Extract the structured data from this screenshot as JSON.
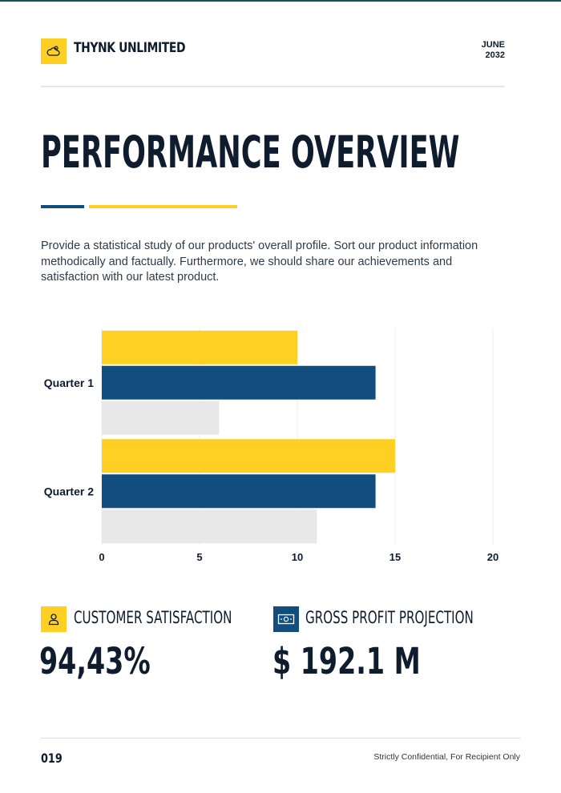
{
  "header": {
    "company": "THYNK UNLIMITED",
    "date_month": "JUNE",
    "date_year": "2032",
    "logo_icon": "cloud-sun-icon"
  },
  "page": {
    "title": "PERFORMANCE OVERVIEW",
    "intro": "Provide a statistical study of our products' overall profile. Sort our product information methodically and factually. Furthermore, we should share our achievements and satisfaction with our latest product."
  },
  "colors": {
    "yellow": "#fdd023",
    "navy": "#124d80",
    "gray": "#e8e8e8",
    "text": "#0f1c2e"
  },
  "chart_data": {
    "type": "bar",
    "orientation": "horizontal",
    "categories": [
      "Quarter 1",
      "Quarter 2"
    ],
    "series": [
      {
        "values": [
          10,
          15
        ],
        "color": "#fdd023"
      },
      {
        "values": [
          14,
          14
        ],
        "color": "#124d80"
      },
      {
        "values": [
          6,
          11
        ],
        "color": "#e8e8e8"
      }
    ],
    "xlim": [
      0,
      20
    ],
    "xticks": [
      0,
      5,
      10,
      15,
      20
    ],
    "grid": true,
    "legend": false
  },
  "stats": [
    {
      "label": "CUSTOMER SATISFACTION",
      "value": "94,43%",
      "icon": "user-icon"
    },
    {
      "label": "GROSS PROFIT PROJECTION",
      "value": "$ 192.1 M",
      "icon": "money-icon"
    }
  ],
  "footer": {
    "page_number": "019",
    "note": "Strictly Confidential, For Recipient Only"
  }
}
